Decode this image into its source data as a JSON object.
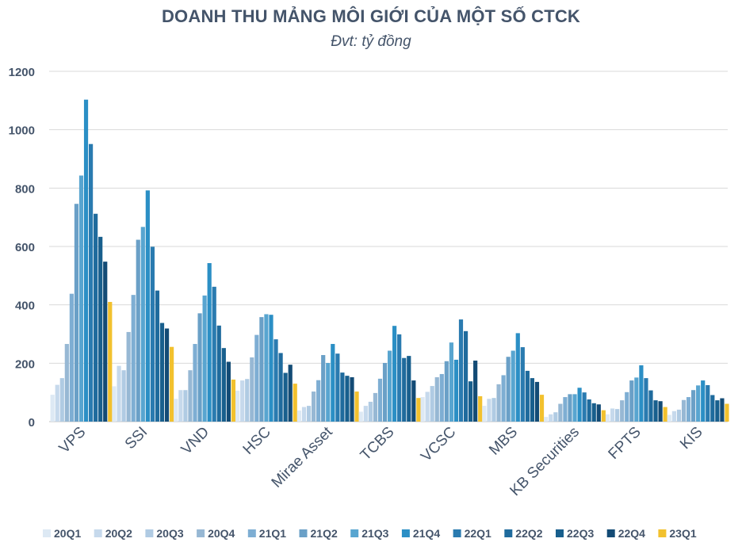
{
  "chart_data": {
    "type": "bar",
    "title": "DOANH THU MẢNG MÔI GIỚI CỦA MỘT SỐ CTCK",
    "subtitle": "Đvt: tỷ đồng",
    "xlabel": "",
    "ylabel": "",
    "ylim": [
      0,
      1200
    ],
    "yticks": [
      0,
      200,
      400,
      600,
      800,
      1000,
      1200
    ],
    "grid": true,
    "legend_position": "bottom",
    "categories": [
      "VPS",
      "SSI",
      "VND",
      "HSC",
      "Mirae Asset",
      "TCBS",
      "VCSC",
      "MBS",
      "KB Securities",
      "FPTS",
      "KIS"
    ],
    "series": [
      {
        "name": "20Q1",
        "color": "#dde9f4",
        "values": [
          92,
          121,
          78,
          106,
          38,
          34,
          84,
          54,
          16,
          25,
          23
        ]
      },
      {
        "name": "20Q2",
        "color": "#c6d9ec",
        "values": [
          126,
          191,
          108,
          141,
          50,
          54,
          102,
          78,
          25,
          45,
          36
        ]
      },
      {
        "name": "20Q3",
        "color": "#b0cbe3",
        "values": [
          149,
          176,
          108,
          146,
          54,
          68,
          122,
          81,
          32,
          43,
          41
        ]
      },
      {
        "name": "20Q4",
        "color": "#97b8d4",
        "values": [
          266,
          307,
          176,
          220,
          103,
          98,
          152,
          128,
          61,
          73,
          74
        ]
      },
      {
        "name": "21Q1",
        "color": "#7eaed3",
        "values": [
          438,
          434,
          266,
          297,
          142,
          147,
          163,
          159,
          84,
          101,
          84
        ]
      },
      {
        "name": "21Q2",
        "color": "#6aa0c7",
        "values": [
          746,
          623,
          371,
          358,
          228,
          201,
          207,
          222,
          94,
          141,
          108
        ]
      },
      {
        "name": "21Q3",
        "color": "#58a5d0",
        "values": [
          843,
          667,
          432,
          368,
          201,
          243,
          271,
          243,
          94,
          151,
          124
        ]
      },
      {
        "name": "21Q4",
        "color": "#2b8fc5",
        "values": [
          1103,
          792,
          543,
          366,
          266,
          328,
          212,
          303,
          116,
          193,
          141
        ]
      },
      {
        "name": "22Q1",
        "color": "#2a7bb0",
        "values": [
          951,
          599,
          462,
          282,
          233,
          299,
          350,
          255,
          100,
          149,
          125
        ]
      },
      {
        "name": "22Q2",
        "color": "#1f6b9d",
        "values": [
          712,
          449,
          329,
          235,
          168,
          218,
          310,
          174,
          76,
          107,
          91
        ]
      },
      {
        "name": "22Q3",
        "color": "#185f8d",
        "values": [
          633,
          338,
          252,
          167,
          157,
          225,
          138,
          149,
          63,
          73,
          73
        ]
      },
      {
        "name": "22Q4",
        "color": "#134b75",
        "values": [
          548,
          319,
          205,
          195,
          152,
          141,
          209,
          136,
          59,
          70,
          80
        ]
      },
      {
        "name": "23Q1",
        "color": "#f2c12e",
        "values": [
          410,
          256,
          144,
          130,
          103,
          81,
          87,
          92,
          39,
          50,
          61
        ]
      }
    ]
  }
}
